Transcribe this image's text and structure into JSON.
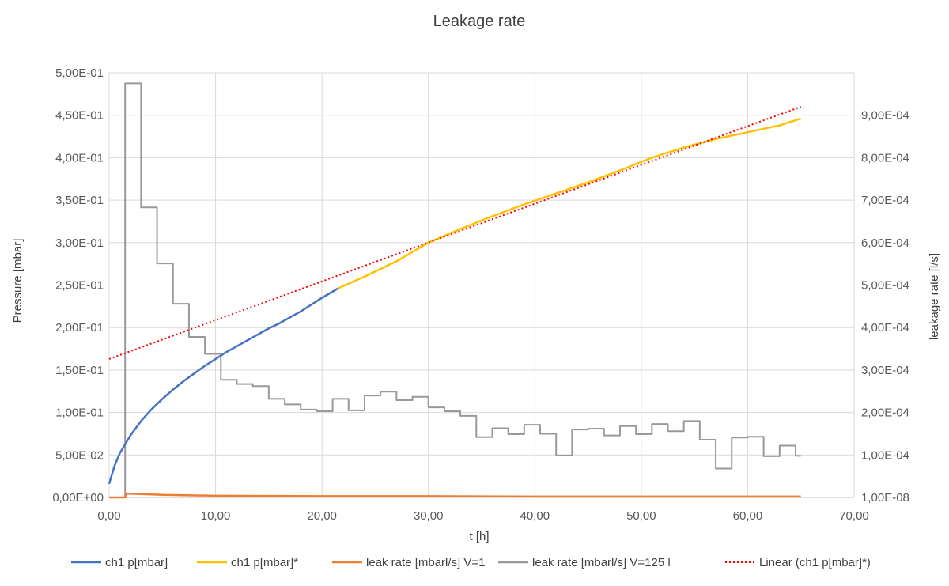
{
  "chart_data": {
    "type": "line",
    "title": "Leakage rate",
    "xlabel": "t [h]",
    "ylabel_left": "Pressure [mbar]",
    "ylabel_right": "leakage rate [l/s]",
    "xlim": [
      0,
      70
    ],
    "ylim_left": [
      0,
      0.5
    ],
    "ylim_right": [
      0,
      0.001
    ],
    "grid": true,
    "legend_position": "bottom",
    "x_tick_labels": [
      "0,00",
      "10,00",
      "20,00",
      "30,00",
      "40,00",
      "50,00",
      "60,00",
      "70,00"
    ],
    "y_left_tick_labels": [
      "0,00E+00",
      "5,00E-02",
      "1,00E-01",
      "1,50E-01",
      "2,00E-01",
      "2,50E-01",
      "3,00E-01",
      "3,50E-01",
      "4,00E-01",
      "4,50E-01",
      "5,00E-01"
    ],
    "y_right_tick_labels": [
      "1,00E-08",
      "1,00E-04",
      "2,00E-04",
      "3,00E-04",
      "4,00E-04",
      "5,00E-04",
      "6,00E-04",
      "7,00E-04",
      "8,00E-04",
      "9,00E-04"
    ],
    "series": [
      {
        "name": "ch1 p[mbar]",
        "axis": "left",
        "color": "#4472c4",
        "style": "solid",
        "x": [
          0,
          0.5,
          1,
          2,
          3,
          4,
          5,
          6,
          7,
          8,
          9,
          10,
          11,
          12,
          13,
          14,
          15,
          16,
          17,
          18,
          19,
          20,
          21.5
        ],
        "values": [
          0.016,
          0.037,
          0.052,
          0.073,
          0.09,
          0.104,
          0.116,
          0.127,
          0.137,
          0.146,
          0.155,
          0.163,
          0.171,
          0.178,
          0.185,
          0.192,
          0.199,
          0.205,
          0.212,
          0.219,
          0.227,
          0.235,
          0.246
        ]
      },
      {
        "name": "ch1 p[mbar]*",
        "axis": "left",
        "color": "#ffc000",
        "style": "solid",
        "x": [
          21.5,
          24,
          27,
          30,
          33,
          36,
          39,
          42,
          45,
          48,
          51,
          54,
          57,
          60,
          63,
          65
        ],
        "values": [
          0.246,
          0.26,
          0.278,
          0.3,
          0.316,
          0.331,
          0.345,
          0.358,
          0.371,
          0.385,
          0.4,
          0.412,
          0.422,
          0.43,
          0.438,
          0.446
        ]
      },
      {
        "name": "leak rate [mbarl/s] V=1",
        "axis": "right",
        "color": "#ed7d31",
        "style": "solid",
        "x": [
          0,
          1.5,
          1.6,
          3,
          5,
          10,
          20,
          30,
          40,
          50,
          60,
          65
        ],
        "values": [
          0,
          0,
          9e-06,
          8e-06,
          6e-06,
          4e-06,
          3e-06,
          3e-06,
          2e-06,
          2e-06,
          2e-06,
          2e-06
        ]
      },
      {
        "name": "leak rate [mbarl/s] V=125 l",
        "axis": "right",
        "color": "#999999",
        "style": "step",
        "x": [
          0,
          1.5,
          1.5,
          3,
          4.5,
          6,
          7.5,
          9,
          10.5,
          12,
          13.5,
          15,
          16.5,
          18,
          19.5,
          21,
          22.5,
          24,
          25.5,
          27,
          28.5,
          30,
          31.5,
          33,
          34.5,
          36,
          37.5,
          39,
          40.5,
          42,
          43.5,
          45,
          46.5,
          48,
          49.5,
          51,
          52.5,
          54,
          55.5,
          57,
          58.5,
          60,
          61.5,
          63,
          64.5,
          65
        ],
        "values": [
          0,
          0,
          0.000975,
          0.000683,
          0.000551,
          0.000456,
          0.000378,
          0.000338,
          0.000277,
          0.000267,
          0.000262,
          0.000232,
          0.000219,
          0.000207,
          0.000203,
          0.000232,
          0.000205,
          0.00024,
          0.000249,
          0.000229,
          0.000237,
          0.000212,
          0.000203,
          0.000192,
          0.000142,
          0.000163,
          0.000149,
          0.000171,
          0.00015,
          9.9e-05,
          0.00016,
          0.000162,
          0.000146,
          0.000168,
          0.000149,
          0.000173,
          0.000156,
          0.00018,
          0.000136,
          6.8e-05,
          0.000141,
          0.000143,
          9.7e-05,
          0.000122,
          9.8e-05,
          9.8e-05
        ]
      },
      {
        "name": "Linear (ch1 p[mbar]*)",
        "axis": "left",
        "color": "#ff0000",
        "style": "dotted",
        "x": [
          0,
          65
        ],
        "values": [
          0.163,
          0.46
        ]
      }
    ]
  }
}
